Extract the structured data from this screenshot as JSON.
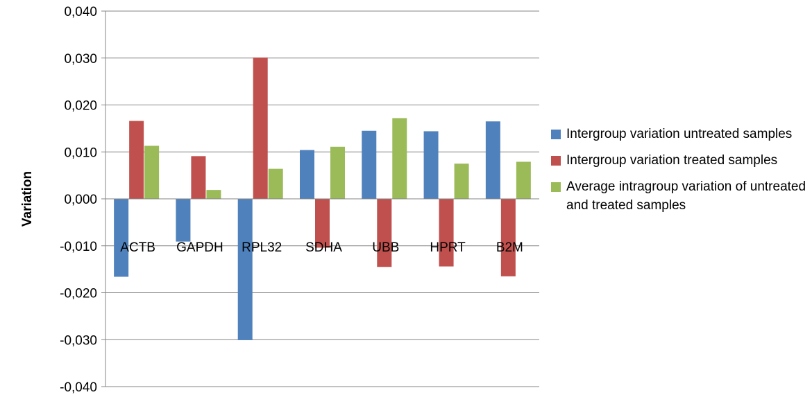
{
  "chart_data": {
    "type": "bar",
    "title": "",
    "xlabel": "",
    "ylabel": "Variation",
    "ylim": [
      -0.04,
      0.04
    ],
    "yticks": [
      "0,040",
      "0,030",
      "0,020",
      "0,010",
      "0,000",
      "-0,010",
      "-0,020",
      "-0,030",
      "-0,040"
    ],
    "grid": true,
    "legend_position": "right",
    "categories": [
      "ACTB",
      "GAPDH",
      "RPL32",
      "SDHA",
      "UBB",
      "HPRT",
      "B2M"
    ],
    "series": [
      {
        "name": "Intergroup variation untreated samples",
        "color": "#4f81bd",
        "values": [
          -0.0166,
          -0.0091,
          -0.0301,
          0.0104,
          0.0145,
          0.0144,
          0.0165
        ]
      },
      {
        "name": "Intergroup variation treated samples",
        "color": "#c0504d",
        "values": [
          0.0166,
          0.0091,
          0.0301,
          -0.0104,
          -0.0145,
          -0.0144,
          -0.0165
        ]
      },
      {
        "name": "Average intragroup variation of untreated and treated samples",
        "color": "#9bbb59",
        "values": [
          0.0113,
          0.0019,
          0.0064,
          0.0111,
          0.0172,
          0.0075,
          0.0079
        ]
      }
    ]
  }
}
